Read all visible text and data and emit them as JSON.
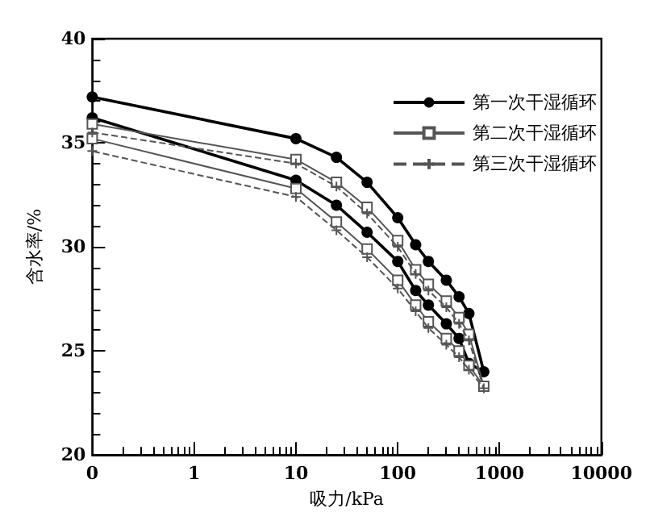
{
  "chart_data": {
    "type": "line",
    "xlabel": "吸力/kPa",
    "ylabel": "含水率/%",
    "log": "x",
    "xlim": [
      0.1,
      10000
    ],
    "xticks": [
      {
        "value": 0.1,
        "label": "0"
      },
      1,
      10,
      100,
      1000,
      10000
    ],
    "ylim": [
      20,
      40
    ],
    "yticks": [
      20,
      25,
      30,
      35,
      40
    ],
    "grid": false,
    "legend": "top right",
    "series": [
      {
        "name": "第一次干湿循环",
        "color": "#000000",
        "marker": "circle",
        "line_style": "solid",
        "x": [
          0.1,
          10,
          25,
          50,
          100,
          150,
          200,
          300,
          400,
          500,
          700,
          500,
          400,
          300,
          200,
          150,
          100,
          50,
          25,
          10,
          0.1
        ],
        "values": [
          37.2,
          35.2,
          34.3,
          33.1,
          31.4,
          30.1,
          29.3,
          28.4,
          27.6,
          26.8,
          24.0,
          24.4,
          25.6,
          26.3,
          27.2,
          27.9,
          29.3,
          30.7,
          32.0,
          33.2,
          36.2
        ]
      },
      {
        "name": "第二次干湿循环",
        "color": "#555555",
        "marker": "square",
        "line_style": "solid",
        "x": [
          0.1,
          10,
          25,
          50,
          100,
          150,
          200,
          300,
          400,
          500,
          700,
          500,
          400,
          300,
          200,
          150,
          100,
          50,
          25,
          10,
          0.1
        ],
        "values": [
          35.9,
          34.2,
          33.1,
          31.9,
          30.3,
          28.9,
          28.2,
          27.4,
          26.6,
          25.8,
          23.3,
          24.3,
          25.0,
          25.6,
          26.4,
          27.2,
          28.4,
          29.9,
          31.2,
          32.8,
          35.2
        ]
      },
      {
        "name": "第三次干湿循环",
        "color": "#555555",
        "marker": "cross",
        "line_style": "dashed",
        "x": [
          0.1,
          10,
          25,
          50,
          100,
          150,
          200,
          300,
          400,
          500,
          700,
          500,
          400,
          300,
          200,
          150,
          100,
          50,
          25,
          10,
          0.1
        ],
        "values": [
          35.5,
          34.0,
          32.9,
          31.6,
          30.0,
          28.7,
          27.9,
          27.1,
          26.3,
          25.5,
          23.2,
          24.1,
          24.7,
          25.3,
          26.1,
          26.9,
          28.0,
          29.5,
          30.8,
          32.4,
          34.6
        ]
      }
    ]
  }
}
